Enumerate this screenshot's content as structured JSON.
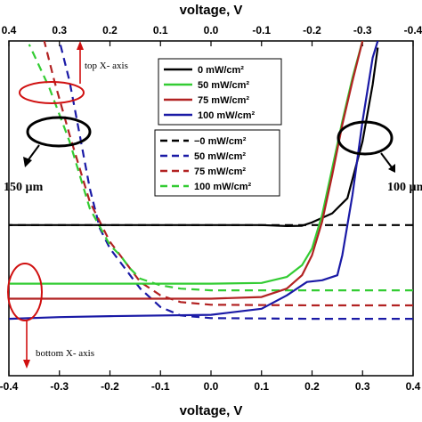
{
  "chart_data": {
    "type": "line",
    "title": "",
    "top_axis": {
      "label": "voltage, V",
      "ticks": [
        "0.4",
        "0.3",
        "0.2",
        "0.1",
        "0.0",
        "-0.1",
        "-0.2",
        "-0.3",
        "-0.4"
      ],
      "values": [
        0.4,
        0.3,
        0.2,
        0.1,
        0.0,
        -0.1,
        -0.2,
        -0.3,
        -0.4
      ],
      "xlim": [
        0.4,
        -0.4
      ]
    },
    "bottom_axis": {
      "label": "voltage, V",
      "ticks": [
        "-0.4",
        "-0.3",
        "-0.2",
        "-0.1",
        "0.0",
        "0.1",
        "0.2",
        "0.3",
        "0.4"
      ],
      "values": [
        -0.4,
        -0.3,
        -0.2,
        -0.1,
        0.0,
        0.1,
        0.2,
        0.3,
        0.4
      ],
      "xlim": [
        -0.4,
        0.4
      ]
    },
    "ylabel": "",
    "legend_solid": {
      "placement": "top-center",
      "entries": [
        {
          "label": "0 mW/cm²",
          "color": "#000000"
        },
        {
          "label": "50 mW/cm²",
          "color": "#33cc33"
        },
        {
          "label": "75 mW/cm²",
          "color": "#b22222"
        },
        {
          "label": "100 mW/cm²",
          "color": "#1a1aa6"
        }
      ]
    },
    "legend_dashed": {
      "placement": "center",
      "entries": [
        {
          "label": "−0 mW/cm²",
          "color": "#000000"
        },
        {
          "label": "50 mW/cm²",
          "color": "#1a1aa6"
        },
        {
          "label": "75 mW/cm²",
          "color": "#b22222"
        },
        {
          "label": "100 mW/cm²",
          "color": "#33cc33"
        }
      ]
    },
    "annotations": {
      "top_x_axis": "top X- axis",
      "bottom_x_axis": "bottom X- axis",
      "left_thickness": "150 µm",
      "right_thickness": "100 µm"
    },
    "solid_series": [
      {
        "name": "0 mW/cm²",
        "color": "#000000",
        "axis": "bottom",
        "points": [
          [
            -0.4,
            0.45
          ],
          [
            -0.2,
            0.45
          ],
          [
            0.0,
            0.45
          ],
          [
            0.1,
            0.45
          ],
          [
            0.15,
            0.447
          ],
          [
            0.18,
            0.448
          ],
          [
            0.2,
            0.458
          ],
          [
            0.24,
            0.485
          ],
          [
            0.27,
            0.53
          ],
          [
            0.3,
            0.7
          ],
          [
            0.32,
            0.87
          ],
          [
            0.33,
            0.98
          ]
        ]
      },
      {
        "name": "50 mW/cm²",
        "color": "#33cc33",
        "axis": "bottom",
        "points": [
          [
            -0.4,
            0.275
          ],
          [
            -0.2,
            0.275
          ],
          [
            0.0,
            0.275
          ],
          [
            0.1,
            0.277
          ],
          [
            0.15,
            0.295
          ],
          [
            0.18,
            0.33
          ],
          [
            0.2,
            0.38
          ],
          [
            0.22,
            0.48
          ],
          [
            0.24,
            0.62
          ],
          [
            0.26,
            0.76
          ],
          [
            0.28,
            0.89
          ],
          [
            0.3,
            1.0
          ]
        ]
      },
      {
        "name": "75 mW/cm²",
        "color": "#b22222",
        "axis": "bottom",
        "points": [
          [
            -0.4,
            0.23
          ],
          [
            -0.2,
            0.23
          ],
          [
            0.0,
            0.23
          ],
          [
            0.1,
            0.235
          ],
          [
            0.15,
            0.26
          ],
          [
            0.18,
            0.3
          ],
          [
            0.2,
            0.36
          ],
          [
            0.22,
            0.46
          ],
          [
            0.24,
            0.6
          ],
          [
            0.26,
            0.75
          ],
          [
            0.28,
            0.88
          ],
          [
            0.3,
            1.0
          ]
        ]
      },
      {
        "name": "100 mW/cm²",
        "color": "#1a1aa6",
        "axis": "bottom",
        "points": [
          [
            -0.4,
            0.17
          ],
          [
            -0.3,
            0.175
          ],
          [
            -0.2,
            0.178
          ],
          [
            0.0,
            0.182
          ],
          [
            0.1,
            0.2
          ],
          [
            0.15,
            0.24
          ],
          [
            0.19,
            0.28
          ],
          [
            0.22,
            0.285
          ],
          [
            0.25,
            0.3
          ],
          [
            0.26,
            0.36
          ],
          [
            0.28,
            0.54
          ],
          [
            0.3,
            0.76
          ],
          [
            0.32,
            0.95
          ],
          [
            0.33,
            1.0
          ]
        ]
      }
    ],
    "dashed_series": [
      {
        "name": "−0 mW/cm²",
        "color": "#000000",
        "axis": "top",
        "points": [
          [
            -0.4,
            0.45
          ],
          [
            -0.2,
            0.45
          ],
          [
            0.0,
            0.45
          ],
          [
            0.1,
            0.45
          ],
          [
            0.2,
            0.45
          ],
          [
            0.4,
            0.45
          ]
        ]
      },
      {
        "name": "50 mW/cm²",
        "color": "#1a1aa6",
        "axis": "top",
        "points": [
          [
            -0.4,
            0.17
          ],
          [
            -0.2,
            0.17
          ],
          [
            0.0,
            0.172
          ],
          [
            0.06,
            0.18
          ],
          [
            0.1,
            0.205
          ],
          [
            0.14,
            0.26
          ],
          [
            0.16,
            0.3
          ],
          [
            0.18,
            0.34
          ],
          [
            0.2,
            0.38
          ],
          [
            0.22,
            0.44
          ],
          [
            0.24,
            0.56
          ],
          [
            0.26,
            0.72
          ],
          [
            0.28,
            0.88
          ],
          [
            0.3,
            1.0
          ]
        ]
      },
      {
        "name": "75 mW/cm²",
        "color": "#b22222",
        "axis": "top",
        "points": [
          [
            -0.4,
            0.21
          ],
          [
            -0.2,
            0.21
          ],
          [
            0.0,
            0.212
          ],
          [
            0.06,
            0.22
          ],
          [
            0.1,
            0.24
          ],
          [
            0.14,
            0.28
          ],
          [
            0.16,
            0.32
          ],
          [
            0.18,
            0.36
          ],
          [
            0.2,
            0.4
          ],
          [
            0.24,
            0.52
          ],
          [
            0.28,
            0.72
          ],
          [
            0.31,
            0.88
          ],
          [
            0.33,
            1.0
          ]
        ]
      },
      {
        "name": "100 mW/cm²",
        "color": "#33cc33",
        "axis": "top",
        "points": [
          [
            -0.4,
            0.255
          ],
          [
            -0.2,
            0.255
          ],
          [
            0.0,
            0.255
          ],
          [
            0.06,
            0.26
          ],
          [
            0.1,
            0.27
          ],
          [
            0.14,
            0.29
          ],
          [
            0.16,
            0.32
          ],
          [
            0.18,
            0.36
          ],
          [
            0.2,
            0.39
          ],
          [
            0.24,
            0.5
          ],
          [
            0.28,
            0.7
          ],
          [
            0.32,
            0.86
          ],
          [
            0.36,
            0.99
          ]
        ]
      }
    ],
    "ylim": [
      0.0,
      1.0
    ],
    "grid": false
  }
}
